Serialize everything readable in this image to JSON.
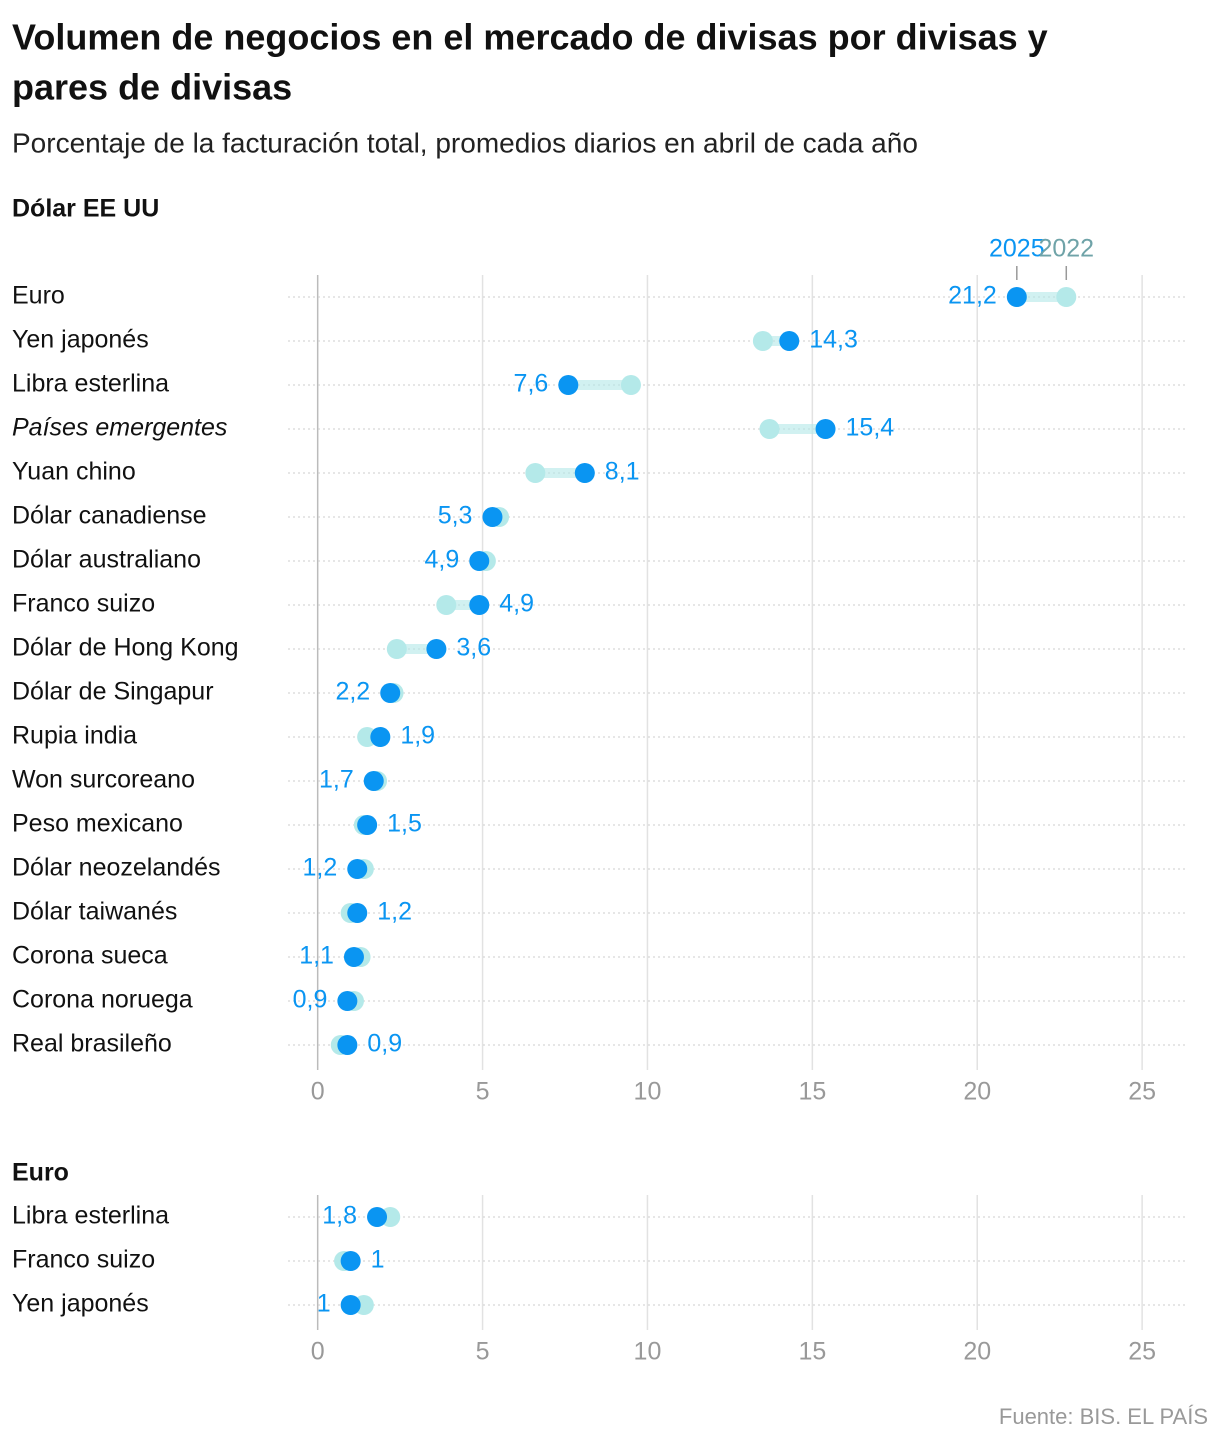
{
  "title": "Volumen de negocios en el mercado de divisas por divisas y pares de divisas",
  "subtitle": "Porcentaje de la facturación total, promedios diarios en abril de cada año",
  "source": "Fuente: BIS. EL PAÍS",
  "chart_data": [
    {
      "type": "dumbbell",
      "title": "Dólar EE UU",
      "categories": [
        "Euro",
        "Yen japonés",
        "Libra esterlina",
        "Países emergentes",
        "Yuan chino",
        "Dólar canadiense",
        "Dólar australiano",
        "Franco suizo",
        "Dólar de Hong Kong",
        "Dólar de Singapur",
        "Rupia india",
        "Won surcoreano",
        "Peso mexicano",
        "Dólar neozelandés",
        "Dólar taiwanés",
        "Corona sueca",
        "Corona noruega",
        "Real brasileño"
      ],
      "series": [
        {
          "name": "2025",
          "color": "#0a95f2",
          "values": [
            21.2,
            14.3,
            7.6,
            15.4,
            8.1,
            5.3,
            4.9,
            4.9,
            3.6,
            2.2,
            1.9,
            1.7,
            1.5,
            1.2,
            1.2,
            1.1,
            0.9,
            0.9
          ],
          "value_labels": [
            "21,2",
            "14,3",
            "7,6",
            "15,4",
            "8,1",
            "5,3",
            "4,9",
            "4,9",
            "3,6",
            "2,2",
            "1,9",
            "1,7",
            "1,5",
            "1,2",
            "1,2",
            "1,1",
            "0,9",
            "0,9"
          ]
        },
        {
          "name": "2022",
          "color": "#b4e9e9",
          "values": [
            22.7,
            13.5,
            9.5,
            13.7,
            6.6,
            5.5,
            5.1,
            3.9,
            2.4,
            2.3,
            1.5,
            1.8,
            1.4,
            1.4,
            1.0,
            1.3,
            1.1,
            0.7
          ]
        }
      ],
      "xlim": [
        -0.9,
        26.3
      ],
      "xticks": [
        0,
        5,
        10,
        15,
        20,
        25
      ],
      "grid": true
    },
    {
      "type": "dumbbell",
      "title": "Euro",
      "categories": [
        "Libra esterlina",
        "Franco suizo",
        "Yen japonés"
      ],
      "series": [
        {
          "name": "2025",
          "color": "#0a95f2",
          "values": [
            1.8,
            1,
            1
          ],
          "value_labels": [
            "1,8",
            "1",
            "1"
          ]
        },
        {
          "name": "2022",
          "color": "#b4e9e9",
          "values": [
            2.2,
            0.8,
            1.4
          ]
        }
      ],
      "xlim": [
        -0.9,
        26.3
      ],
      "xticks": [
        0,
        5,
        10,
        15,
        20,
        25
      ],
      "grid": true
    }
  ]
}
